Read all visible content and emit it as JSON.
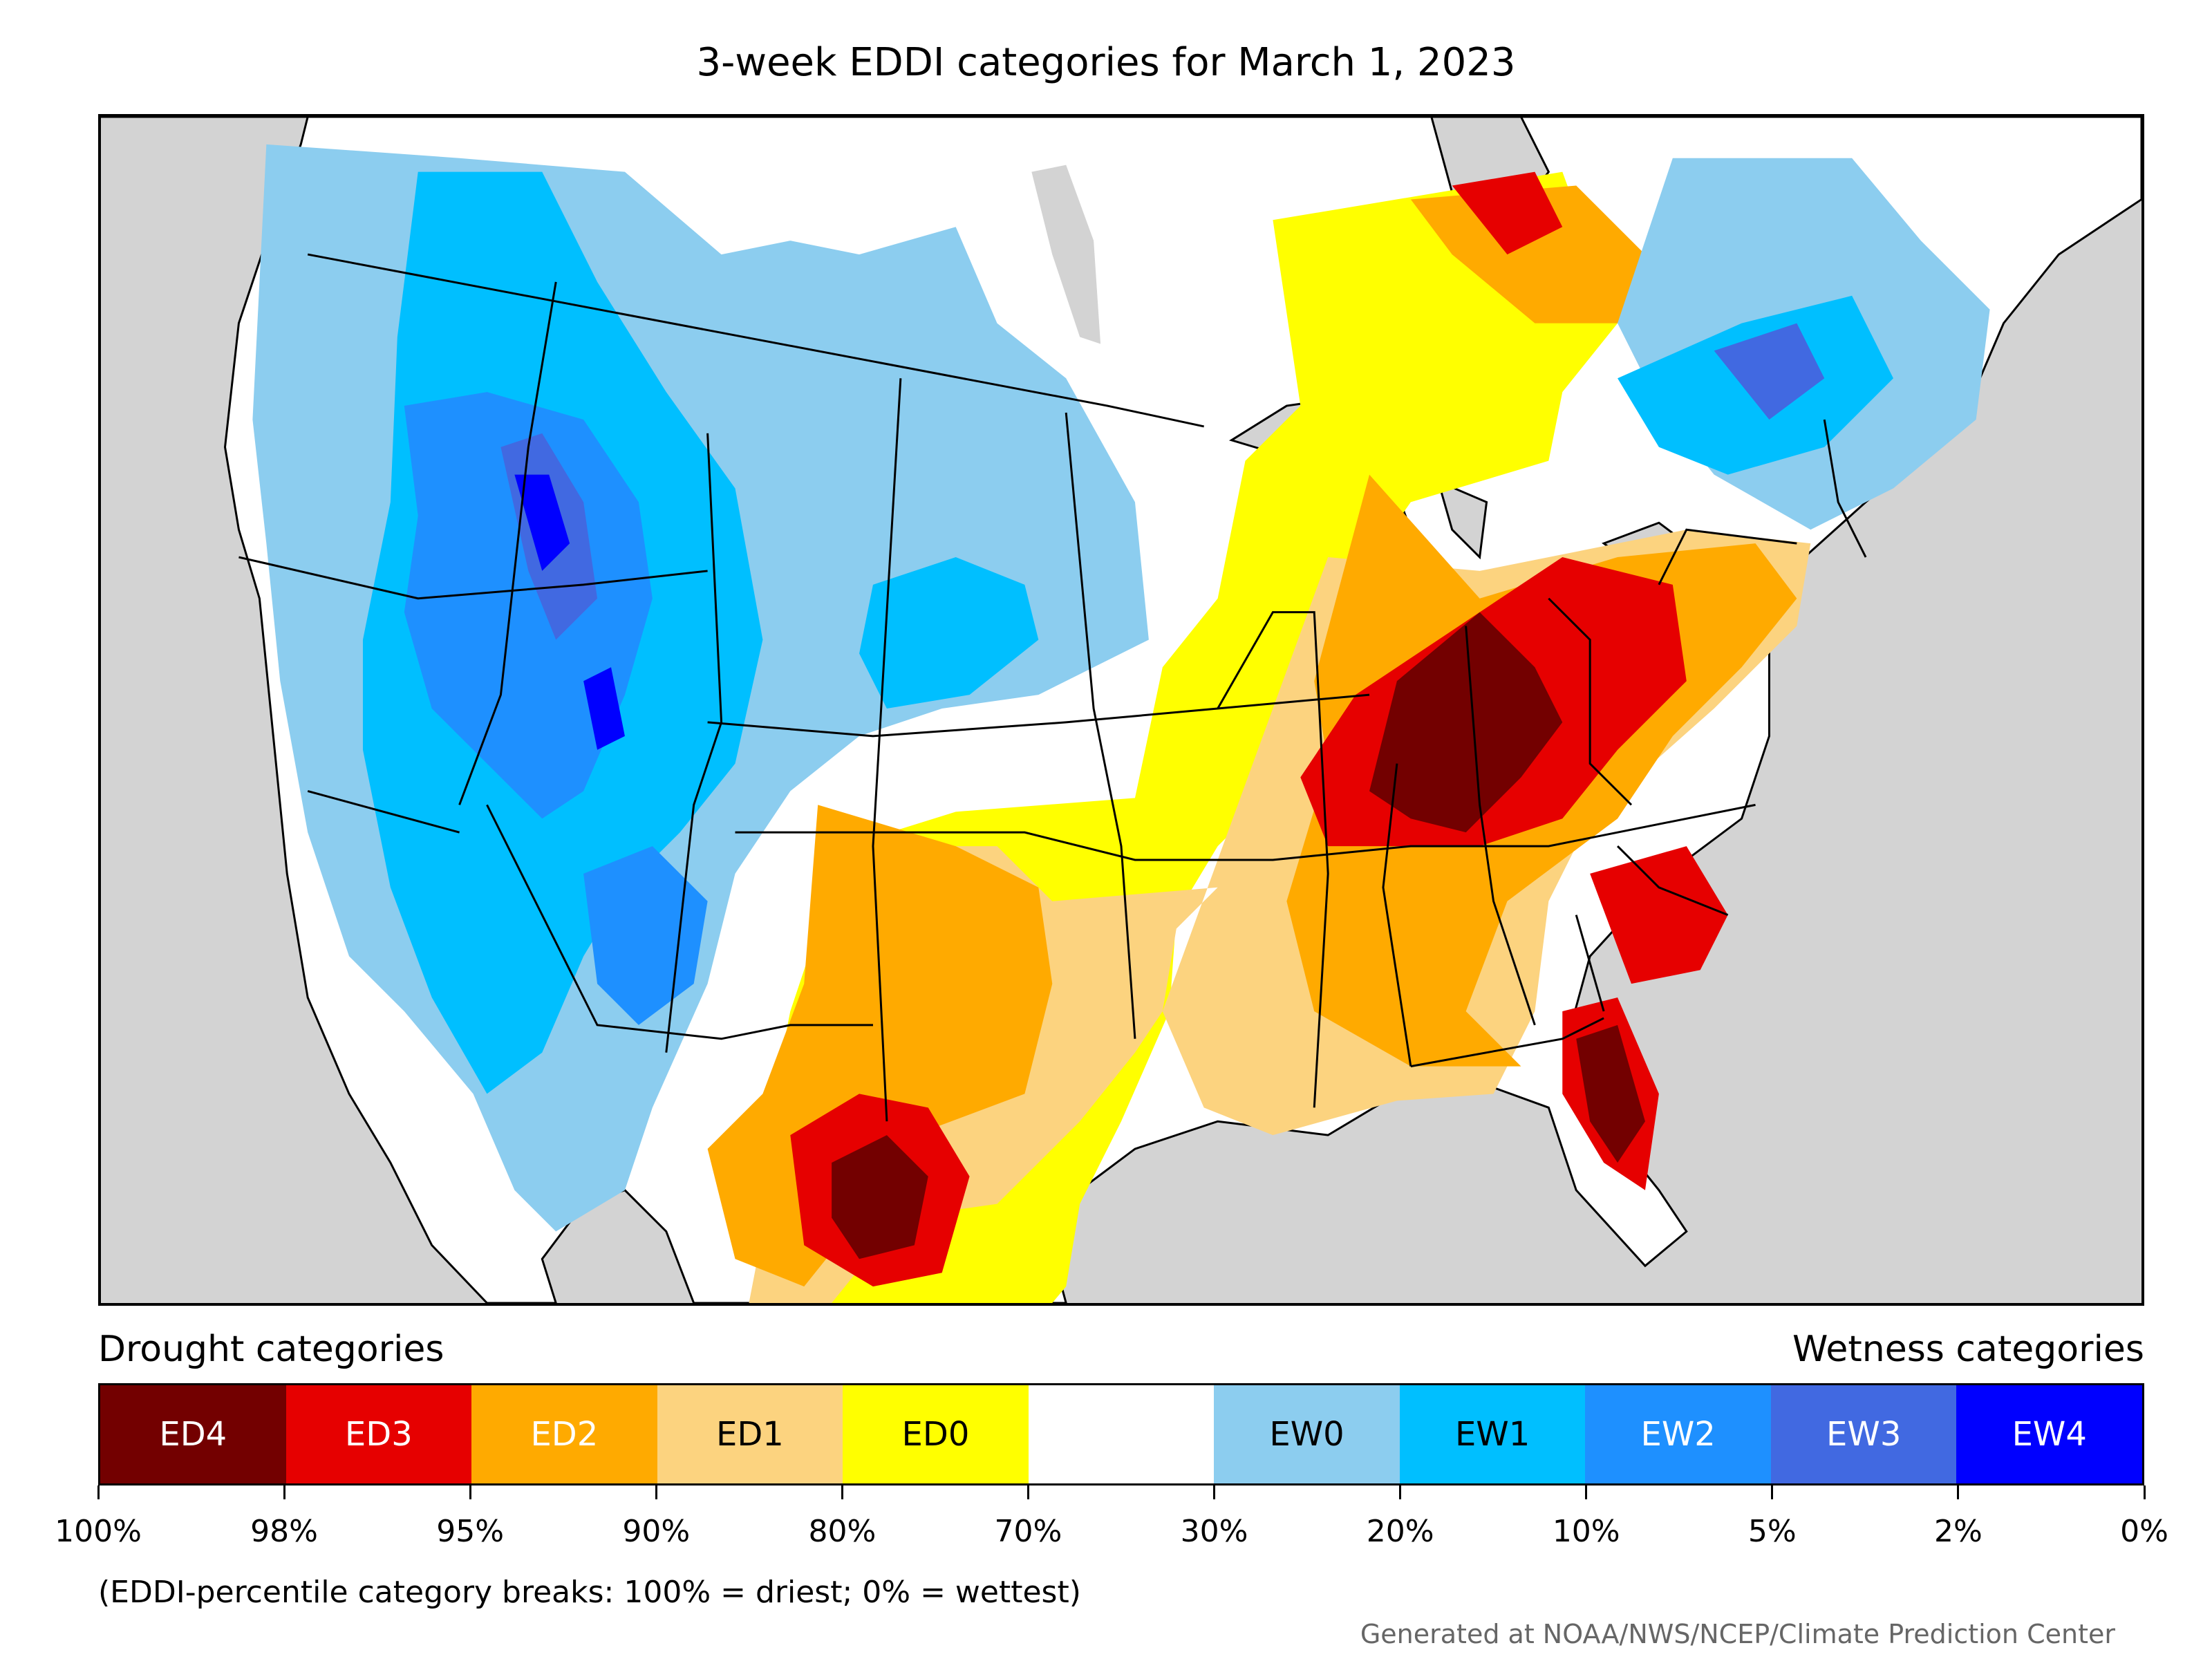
{
  "title": "3-week EDDI categories for March 1, 2023",
  "legend": {
    "drought_label": "Drought categories",
    "wetness_label": "Wetness categories",
    "categories": [
      {
        "label": "ED4",
        "color": "#730000",
        "text_color": "#ffffff"
      },
      {
        "label": "ED3",
        "color": "#e60000",
        "text_color": "#ffffff"
      },
      {
        "label": "ED2",
        "color": "#ffaa00",
        "text_color": "#ffffff"
      },
      {
        "label": "ED1",
        "color": "#fcd37f",
        "text_color": "#000000"
      },
      {
        "label": "ED0",
        "color": "#ffff00",
        "text_color": "#000000"
      },
      {
        "label": "",
        "color": "#ffffff",
        "text_color": "#000000"
      },
      {
        "label": "EW0",
        "color": "#8ccdef",
        "text_color": "#000000"
      },
      {
        "label": "EW1",
        "color": "#00bfff",
        "text_color": "#000000"
      },
      {
        "label": "EW2",
        "color": "#1e90ff",
        "text_color": "#ffffff"
      },
      {
        "label": "EW3",
        "color": "#4169e1",
        "text_color": "#ffffff"
      },
      {
        "label": "EW4",
        "color": "#0000ff",
        "text_color": "#ffffff"
      }
    ],
    "ticks": [
      "100%",
      "98%",
      "95%",
      "90%",
      "80%",
      "70%",
      "30%",
      "20%",
      "10%",
      "5%",
      "2%",
      "0%"
    ],
    "note": "(EDDI-percentile category breaks: 100% = driest; 0% = wettest)"
  },
  "credit": "Generated at NOAA/NWS/NCEP/Climate Prediction Center",
  "map": {
    "ocean_color": "#d3d3d3",
    "land_color": "#ffffff",
    "region_order": [
      "ED0",
      "ED1",
      "ED2",
      "ED3",
      "ED4",
      "EW0",
      "EW1",
      "EW2",
      "EW3",
      "EW4"
    ]
  }
}
